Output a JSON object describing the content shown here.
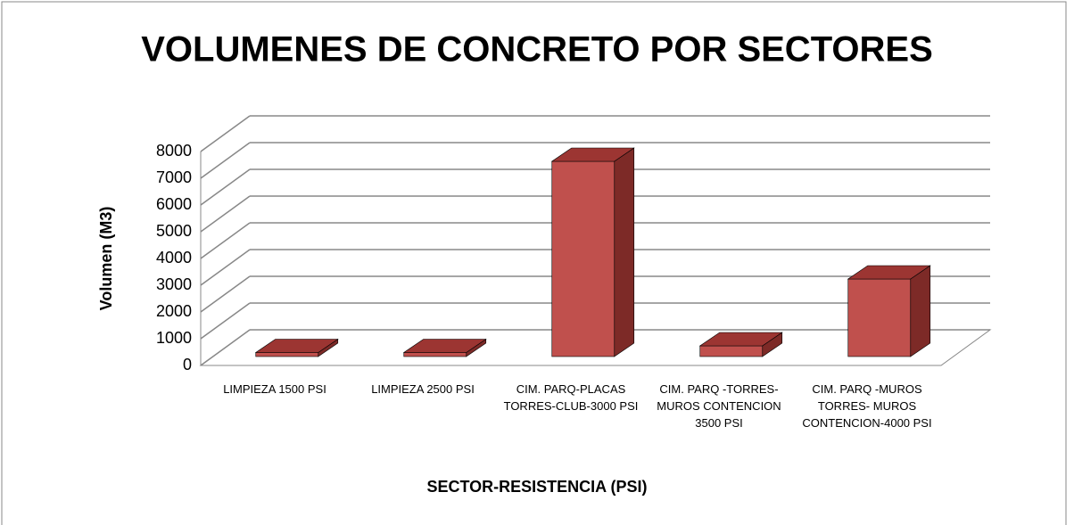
{
  "chart_data": {
    "type": "bar3d",
    "title": "VOLUMENES DE CONCRETO POR SECTORES",
    "x_label": "SECTOR-RESISTENCIA (PSI)",
    "y_label": "Volumen (M3)",
    "categories": [
      "LIMPIEZA 1500 PSI",
      "LIMPIEZA 2500 PSI",
      "CIM. PARQ-PLACAS TORRES-CLUB-3000 PSI",
      "CIM. PARQ -TORRES- MUROS CONTENCION 3500 PSI",
      "CIM. PARQ -MUROS TORRES- MUROS CONTENCION-4000 PSI"
    ],
    "values": [
      150,
      150,
      7300,
      400,
      2900
    ],
    "color": "#c0504d",
    "ylim": [
      0,
      8000
    ],
    "yticks": [
      0,
      1000,
      2000,
      3000,
      4000,
      5000,
      6000,
      7000,
      8000
    ],
    "grid": true
  }
}
